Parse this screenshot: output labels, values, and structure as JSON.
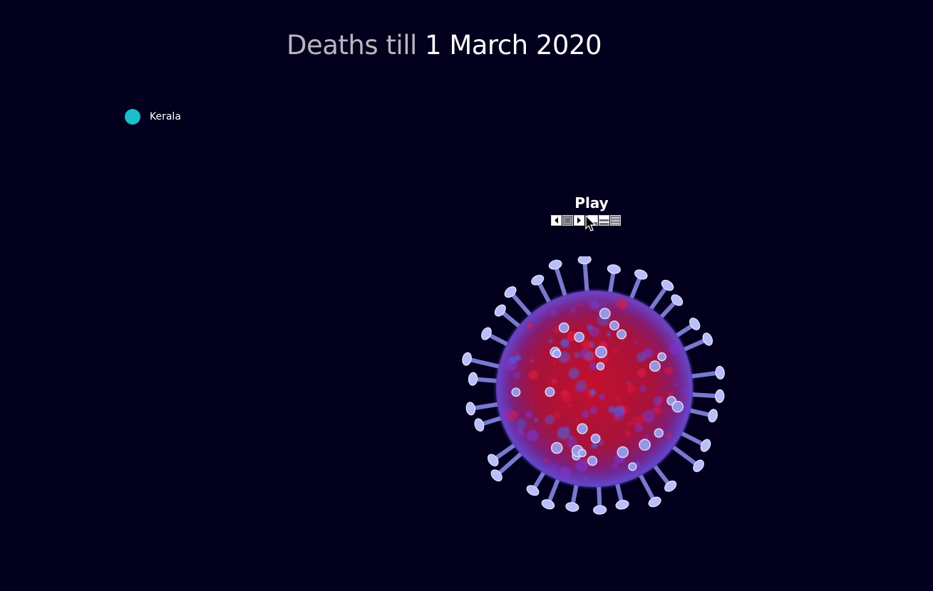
{
  "title": {
    "prefix": "Deaths till ",
    "date": "1 March 2020"
  },
  "legend": {
    "items": [
      {
        "label": "Kerala",
        "color": "#1bbfcc"
      }
    ]
  },
  "player": {
    "label": "Play",
    "controls": [
      {
        "name": "prev-icon"
      },
      {
        "name": "stop-icon"
      },
      {
        "name": "next-icon"
      },
      {
        "name": "layout-bottom-icon"
      },
      {
        "name": "layout-middle-icon"
      },
      {
        "name": "layout-full-icon"
      }
    ]
  },
  "image": {
    "subject": "coronavirus-illustration"
  }
}
